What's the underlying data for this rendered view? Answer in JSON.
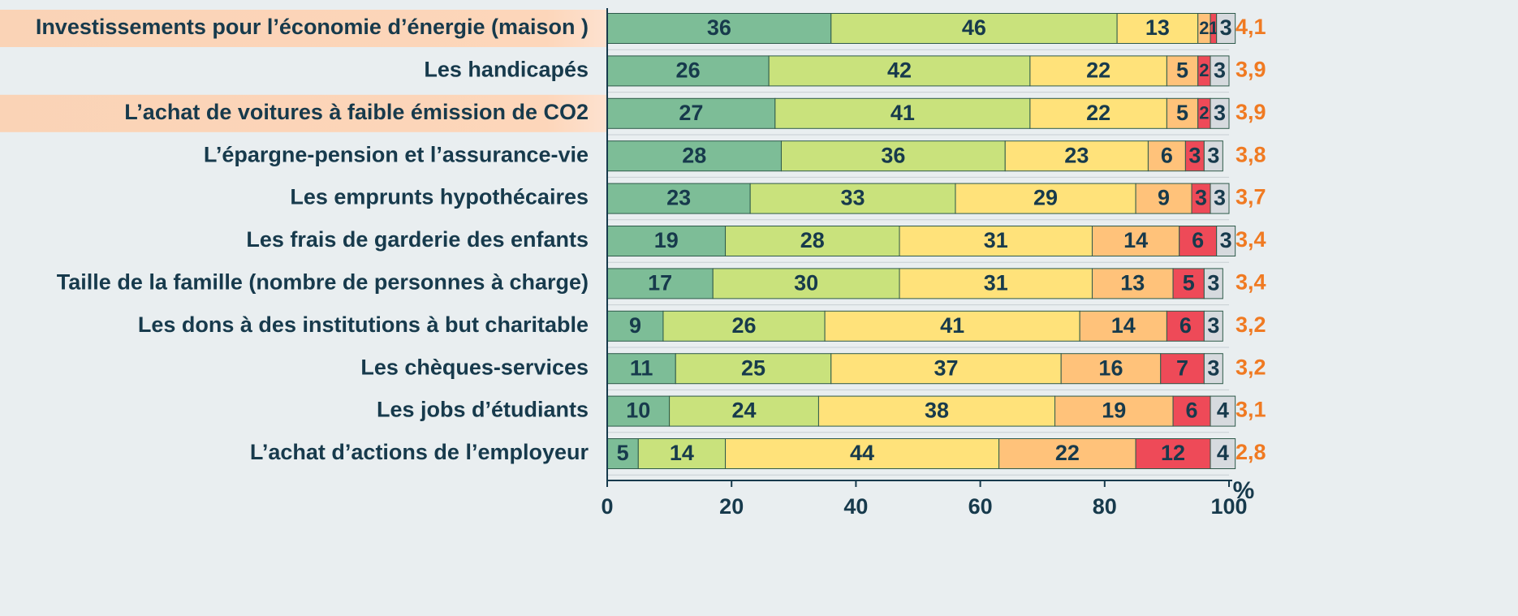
{
  "chart_data": {
    "type": "stacked_barh",
    "categories": [
      "Investissements pour l’économie d’énergie (maison )",
      "Les handicapés",
      "L’achat de voitures à faible émission de CO2",
      "L’épargne-pension et l’assurance-vie",
      "Les emprunts hypothécaires",
      "Les frais de garderie des enfants",
      "Taille de la famille (nombre de personnes à charge)",
      "Les dons à des institutions à but charitable ",
      "Les chèques-services",
      "Les jobs d’étudiants",
      "L’achat d’actions de l’employeur"
    ],
    "highlighted": [
      true,
      false,
      true,
      false,
      false,
      false,
      false,
      false,
      false,
      false,
      false
    ],
    "series": [
      {
        "color": "#7dbd97",
        "values": [
          36,
          26,
          27,
          28,
          23,
          19,
          17,
          9,
          11,
          10,
          5
        ]
      },
      {
        "color": "#c9e27c",
        "values": [
          46,
          42,
          41,
          36,
          33,
          28,
          30,
          26,
          25,
          24,
          14
        ]
      },
      {
        "color": "#ffe27a",
        "values": [
          13,
          22,
          22,
          23,
          29,
          31,
          31,
          41,
          37,
          38,
          44
        ]
      },
      {
        "color": "#ffc27a",
        "values": [
          2,
          5,
          5,
          6,
          9,
          14,
          13,
          14,
          16,
          19,
          22
        ]
      },
      {
        "color": "#ee4a58",
        "values": [
          1,
          2,
          2,
          3,
          3,
          6,
          5,
          6,
          7,
          6,
          12
        ]
      },
      {
        "color": "#d6dade",
        "values": [
          3,
          3,
          3,
          3,
          3,
          3,
          3,
          3,
          3,
          4,
          4
        ]
      }
    ],
    "scores": [
      "4,1",
      "3,9",
      "3,9",
      "3,8",
      "3,7",
      "3,4",
      "3,4",
      "3,2",
      "3,2",
      "3,1",
      "2,8"
    ],
    "score_color": "#f07a22",
    "x_label": "%",
    "xlim": [
      0,
      100
    ],
    "xticks": [
      0,
      20,
      40,
      60,
      80,
      100
    ]
  }
}
